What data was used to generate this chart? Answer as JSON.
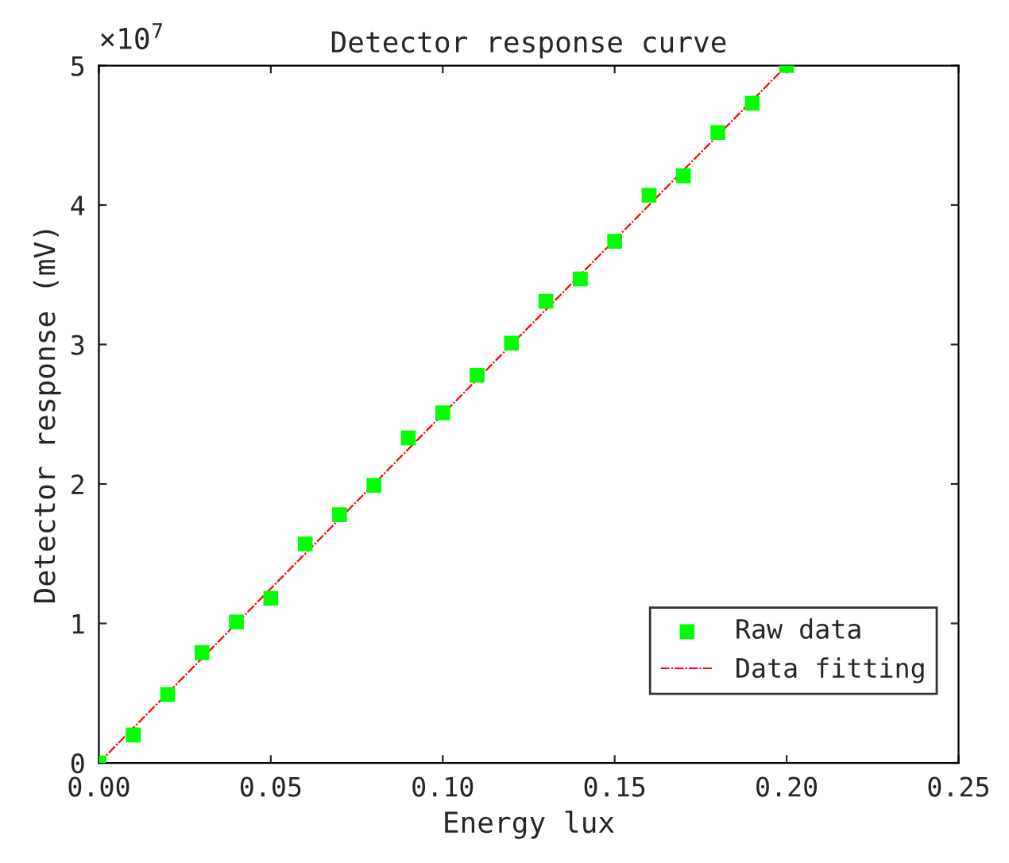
{
  "chart_data": {
    "type": "scatter",
    "title": "Detector response curve",
    "xlabel": "Energy lux",
    "ylabel": "Detector response (mV)",
    "annotations": [
      "×10$^{7}$"
    ],
    "series": [
      {
        "name": "Raw data",
        "type": "scatter",
        "color": "#00ff00",
        "marker": "square",
        "x": [
          0.0,
          0.01,
          0.02,
          0.03,
          0.04,
          0.05,
          0.06,
          0.07,
          0.08,
          0.09,
          0.1,
          0.11,
          0.12,
          0.13,
          0.14,
          0.15,
          0.16,
          0.17,
          0.18,
          0.19,
          0.2
        ],
        "values": [
          0,
          0.2,
          0.49,
          0.79,
          1.01,
          1.18,
          1.57,
          1.78,
          1.99,
          2.33,
          2.51,
          2.78,
          3.01,
          3.31,
          3.47,
          3.74,
          4.07,
          4.21,
          4.52,
          4.73,
          5.0
        ]
      },
      {
        "name": "Data fitting",
        "type": "line",
        "color": "#ff0000",
        "line_style": "dashed",
        "x": [
          0.0,
          0.2
        ],
        "values": [
          0,
          5.0
        ]
      }
    ],
    "xlim": [
      0,
      0.25
    ],
    "ylim": [
      0,
      5
    ],
    "xticks": [
      {
        "value": 0,
        "label": "0.00"
      },
      {
        "value": 0.05,
        "label": "0.05"
      },
      {
        "value": 0.1,
        "label": "0.10"
      },
      {
        "value": 0.15,
        "label": "0.15"
      },
      {
        "value": 0.2,
        "label": "0.20"
      },
      {
        "value": 0.25,
        "label": "0.25"
      }
    ],
    "yticks": [
      0,
      1,
      2,
      3,
      4,
      5
    ],
    "grid": false,
    "legend": "bottom right"
  }
}
